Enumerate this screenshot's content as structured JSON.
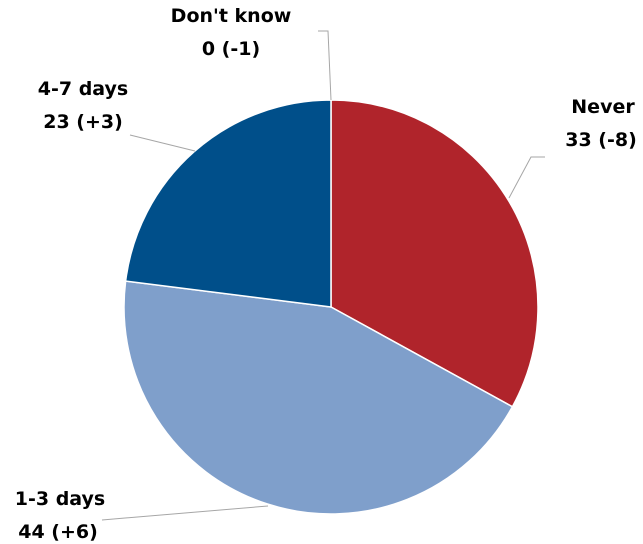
{
  "chart_data": {
    "type": "pie",
    "slices": [
      {
        "label": "Never",
        "value": 33,
        "change": "33 (-8)",
        "color": "#b0242b"
      },
      {
        "label": "1-3 days",
        "value": 44,
        "change": "44 (+6)",
        "color": "#7f9fcb"
      },
      {
        "label": "4-7 days",
        "value": 23,
        "change": "23 (+3)",
        "color": "#004f8a"
      },
      {
        "label": "Don't know",
        "value": 0,
        "change": "0 (-1)",
        "color": "#a6a6a6"
      }
    ]
  }
}
